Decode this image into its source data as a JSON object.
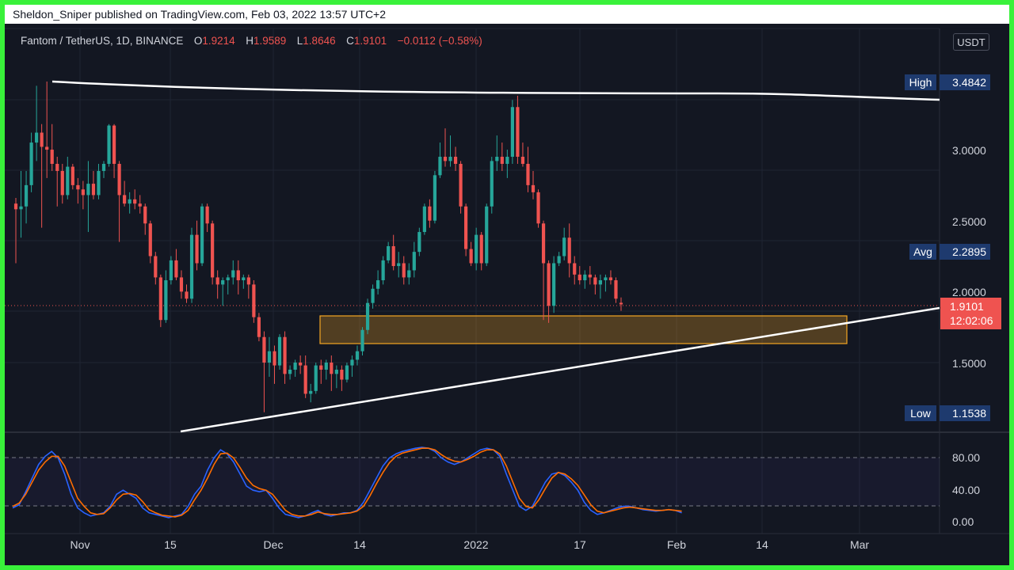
{
  "header": {
    "author": "Sheldon_Sniper",
    "published_text": "published on TradingView.com, Feb 03, 2022 13:57 UTC+2"
  },
  "legend": {
    "symbol": "Fantom / TetherUS, 1D, BINANCE",
    "open_label": "O",
    "open": "1.9214",
    "high_label": "H",
    "high": "1.9589",
    "low_label": "L",
    "low": "1.8646",
    "close_label": "C",
    "close": "1.9101",
    "change": "−0.0112 (−0.58%)"
  },
  "currency_button": "USDT",
  "price_scale": {
    "ticks": [
      "3.0000",
      "2.5000",
      "2.0000",
      "1.5000"
    ],
    "high_label": "High",
    "high_value": "3.4842",
    "avg_label": "Avg",
    "avg_value": "2.2895",
    "low_label": "Low",
    "low_value": "1.1538",
    "current_price": "1.9101",
    "countdown": "12:02:06"
  },
  "oscillator_scale": {
    "ticks": [
      "80.00",
      "40.00",
      "0.00"
    ]
  },
  "time_axis": {
    "labels": [
      "Nov",
      "15",
      "Dec",
      "14",
      "2022",
      "17",
      "Feb",
      "14",
      "Mar"
    ]
  },
  "colors": {
    "background": "#131722",
    "up": "#26a69a",
    "down": "#ef5350",
    "zone": "#f5a623",
    "trendline": "#ffffff",
    "stoch_k": "#2962ff",
    "stoch_d": "#ff6d00",
    "frame": "#39f13a"
  },
  "chart_data": {
    "type": "candlestick",
    "symbol": "Fantom / TetherUS",
    "interval": "1D",
    "ylim": [
      1.1,
      3.55
    ],
    "candles_ohlc": [
      [
        2.62,
        2.66,
        2.2,
        2.58
      ],
      [
        2.58,
        2.85,
        2.38,
        2.6
      ],
      [
        2.6,
        2.85,
        2.48,
        2.75
      ],
      [
        2.75,
        3.12,
        2.7,
        3.05
      ],
      [
        3.05,
        3.45,
        2.92,
        3.12
      ],
      [
        3.12,
        3.18,
        2.45,
        3.02
      ],
      [
        3.02,
        3.48,
        2.8,
        3.0
      ],
      [
        3.0,
        3.18,
        2.85,
        2.9
      ],
      [
        2.9,
        2.95,
        2.6,
        2.85
      ],
      [
        2.85,
        2.9,
        2.62,
        2.68
      ],
      [
        2.68,
        2.95,
        2.65,
        2.88
      ],
      [
        2.88,
        2.9,
        2.72,
        2.75
      ],
      [
        2.75,
        2.8,
        2.62,
        2.72
      ],
      [
        2.72,
        2.78,
        2.58,
        2.68
      ],
      [
        2.68,
        2.92,
        2.42,
        2.76
      ],
      [
        2.76,
        2.85,
        2.65,
        2.68
      ],
      [
        2.68,
        2.9,
        2.65,
        2.85
      ],
      [
        2.85,
        2.92,
        2.8,
        2.9
      ],
      [
        2.9,
        3.18,
        2.88,
        3.17
      ],
      [
        3.17,
        3.18,
        2.8,
        2.9
      ],
      [
        2.9,
        2.92,
        2.35,
        2.68
      ],
      [
        2.68,
        2.78,
        2.6,
        2.62
      ],
      [
        2.62,
        2.7,
        2.55,
        2.65
      ],
      [
        2.65,
        2.72,
        2.58,
        2.62
      ],
      [
        2.62,
        2.68,
        2.55,
        2.6
      ],
      [
        2.6,
        2.62,
        2.4,
        2.48
      ],
      [
        2.48,
        2.5,
        2.2,
        2.25
      ],
      [
        2.25,
        2.28,
        2.05,
        2.1
      ],
      [
        2.1,
        2.12,
        1.75,
        1.8
      ],
      [
        1.8,
        2.15,
        1.78,
        2.08
      ],
      [
        2.08,
        2.25,
        2.05,
        2.22
      ],
      [
        2.22,
        2.3,
        2.08,
        2.1
      ],
      [
        2.1,
        2.15,
        1.95,
        2.0
      ],
      [
        2.0,
        2.05,
        1.92,
        1.95
      ],
      [
        1.95,
        2.45,
        1.92,
        2.4
      ],
      [
        2.4,
        2.5,
        2.15,
        2.2
      ],
      [
        2.2,
        2.62,
        2.18,
        2.6
      ],
      [
        2.6,
        2.62,
        2.42,
        2.48
      ],
      [
        2.48,
        2.5,
        2.05,
        2.1
      ],
      [
        2.1,
        2.15,
        1.95,
        2.05
      ],
      [
        2.05,
        2.1,
        1.9,
        2.08
      ],
      [
        2.08,
        2.12,
        1.98,
        2.1
      ],
      [
        2.1,
        2.22,
        2.05,
        2.15
      ],
      [
        2.15,
        2.22,
        1.98,
        2.08
      ],
      [
        2.08,
        2.12,
        2.02,
        2.1
      ],
      [
        2.1,
        2.12,
        1.95,
        2.05
      ],
      [
        2.05,
        2.08,
        1.78,
        1.82
      ],
      [
        1.82,
        1.85,
        1.65,
        1.68
      ],
      [
        1.68,
        1.72,
        1.15,
        1.5
      ],
      [
        1.5,
        1.68,
        1.4,
        1.58
      ],
      [
        1.58,
        1.62,
        1.35,
        1.48
      ],
      [
        1.48,
        1.7,
        1.45,
        1.68
      ],
      [
        1.68,
        1.72,
        1.35,
        1.42
      ],
      [
        1.42,
        1.48,
        1.38,
        1.45
      ],
      [
        1.45,
        1.52,
        1.4,
        1.5
      ],
      [
        1.5,
        1.55,
        1.42,
        1.48
      ],
      [
        1.48,
        1.55,
        1.25,
        1.28
      ],
      [
        1.28,
        1.35,
        1.22,
        1.3
      ],
      [
        1.3,
        1.5,
        1.28,
        1.48
      ],
      [
        1.48,
        1.52,
        1.35,
        1.45
      ],
      [
        1.45,
        1.52,
        1.38,
        1.5
      ],
      [
        1.5,
        1.55,
        1.3,
        1.42
      ],
      [
        1.42,
        1.48,
        1.32,
        1.45
      ],
      [
        1.45,
        1.48,
        1.3,
        1.38
      ],
      [
        1.38,
        1.5,
        1.36,
        1.48
      ],
      [
        1.48,
        1.55,
        1.4,
        1.52
      ],
      [
        1.52,
        1.62,
        1.48,
        1.58
      ],
      [
        1.58,
        1.75,
        1.55,
        1.73
      ],
      [
        1.73,
        1.95,
        1.7,
        1.92
      ],
      [
        1.92,
        2.05,
        1.88,
        2.02
      ],
      [
        2.02,
        2.15,
        1.98,
        2.08
      ],
      [
        2.08,
        2.25,
        2.05,
        2.22
      ],
      [
        2.22,
        2.35,
        2.2,
        2.32
      ],
      [
        2.32,
        2.4,
        2.15,
        2.18
      ],
      [
        2.18,
        2.28,
        2.1,
        2.2
      ],
      [
        2.2,
        2.25,
        2.05,
        2.1
      ],
      [
        2.1,
        2.2,
        2.05,
        2.15
      ],
      [
        2.15,
        2.35,
        2.1,
        2.28
      ],
      [
        2.28,
        2.45,
        2.25,
        2.42
      ],
      [
        2.42,
        2.62,
        2.4,
        2.6
      ],
      [
        2.6,
        2.65,
        2.45,
        2.5
      ],
      [
        2.5,
        2.85,
        2.48,
        2.82
      ],
      [
        2.82,
        3.05,
        2.8,
        2.95
      ],
      [
        2.95,
        3.15,
        2.88,
        2.92
      ],
      [
        2.92,
        3.1,
        2.88,
        2.95
      ],
      [
        2.95,
        3.02,
        2.85,
        2.9
      ],
      [
        2.9,
        2.92,
        2.55,
        2.6
      ],
      [
        2.6,
        2.62,
        2.25,
        2.3
      ],
      [
        2.3,
        2.35,
        2.18,
        2.2
      ],
      [
        2.2,
        2.45,
        2.15,
        2.4
      ],
      [
        2.4,
        2.42,
        2.15,
        2.2
      ],
      [
        2.2,
        2.62,
        2.18,
        2.6
      ],
      [
        2.6,
        2.95,
        2.55,
        2.92
      ],
      [
        2.92,
        3.1,
        2.85,
        2.95
      ],
      [
        2.95,
        3.05,
        2.85,
        2.9
      ],
      [
        2.9,
        3.0,
        2.8,
        2.95
      ],
      [
        2.95,
        3.35,
        2.9,
        3.3
      ],
      [
        3.3,
        3.38,
        2.9,
        2.95
      ],
      [
        2.95,
        3.05,
        2.88,
        2.9
      ],
      [
        2.9,
        3.02,
        2.7,
        2.75
      ],
      [
        2.75,
        2.85,
        2.65,
        2.7
      ],
      [
        2.7,
        2.72,
        2.45,
        2.48
      ],
      [
        2.48,
        2.5,
        1.8,
        2.2
      ],
      [
        2.2,
        2.22,
        1.78,
        1.9
      ],
      [
        1.9,
        2.25,
        1.85,
        2.2
      ],
      [
        2.2,
        2.28,
        2.18,
        2.25
      ],
      [
        2.25,
        2.45,
        2.22,
        2.38
      ],
      [
        2.38,
        2.48,
        2.1,
        2.2
      ],
      [
        2.2,
        2.25,
        2.05,
        2.12
      ],
      [
        2.12,
        2.18,
        2.05,
        2.08
      ],
      [
        2.08,
        2.15,
        2.02,
        2.12
      ],
      [
        2.12,
        2.18,
        2.05,
        2.1
      ],
      [
        2.1,
        2.12,
        1.98,
        2.05
      ],
      [
        2.05,
        2.12,
        1.95,
        2.08
      ],
      [
        2.08,
        2.12,
        2.0,
        2.1
      ],
      [
        2.1,
        2.15,
        2.05,
        2.08
      ],
      [
        2.08,
        2.1,
        1.92,
        1.95
      ],
      [
        1.9214,
        1.9589,
        1.8646,
        1.9101
      ]
    ],
    "support_zone": [
      1.67,
      1.87
    ],
    "stochastic": {
      "k": [
        18,
        22,
        38,
        55,
        72,
        82,
        88,
        80,
        60,
        35,
        18,
        12,
        8,
        10,
        12,
        20,
        35,
        40,
        35,
        30,
        18,
        12,
        10,
        8,
        6,
        8,
        10,
        20,
        35,
        45,
        65,
        80,
        90,
        85,
        75,
        60,
        45,
        40,
        38,
        40,
        30,
        18,
        10,
        8,
        6,
        8,
        12,
        15,
        10,
        8,
        10,
        12,
        12,
        15,
        25,
        40,
        55,
        70,
        80,
        85,
        88,
        90,
        92,
        93,
        92,
        88,
        80,
        75,
        72,
        75,
        80,
        85,
        90,
        92,
        90,
        82,
        60,
        40,
        20,
        15,
        20,
        35,
        50,
        60,
        62,
        58,
        50,
        40,
        25,
        15,
        10,
        12,
        15,
        18,
        20,
        20,
        18,
        16,
        15,
        14,
        15,
        16,
        15,
        12
      ],
      "d": [
        20,
        24,
        35,
        50,
        65,
        75,
        82,
        82,
        70,
        50,
        30,
        20,
        12,
        10,
        11,
        18,
        28,
        35,
        36,
        34,
        26,
        16,
        12,
        9,
        8,
        7,
        9,
        15,
        28,
        40,
        55,
        72,
        85,
        86,
        80,
        68,
        55,
        46,
        42,
        40,
        35,
        25,
        15,
        10,
        8,
        8,
        10,
        13,
        11,
        10,
        10,
        11,
        12,
        14,
        20,
        33,
        48,
        62,
        74,
        82,
        86,
        88,
        90,
        92,
        92,
        90,
        84,
        79,
        76,
        75,
        78,
        82,
        87,
        90,
        90,
        85,
        70,
        50,
        30,
        20,
        18,
        28,
        42,
        55,
        62,
        60,
        54,
        46,
        34,
        22,
        14,
        12,
        14,
        16,
        18,
        19,
        18,
        17,
        16,
        15,
        15,
        16,
        15,
        14
      ],
      "levels": [
        80,
        20
      ]
    }
  }
}
